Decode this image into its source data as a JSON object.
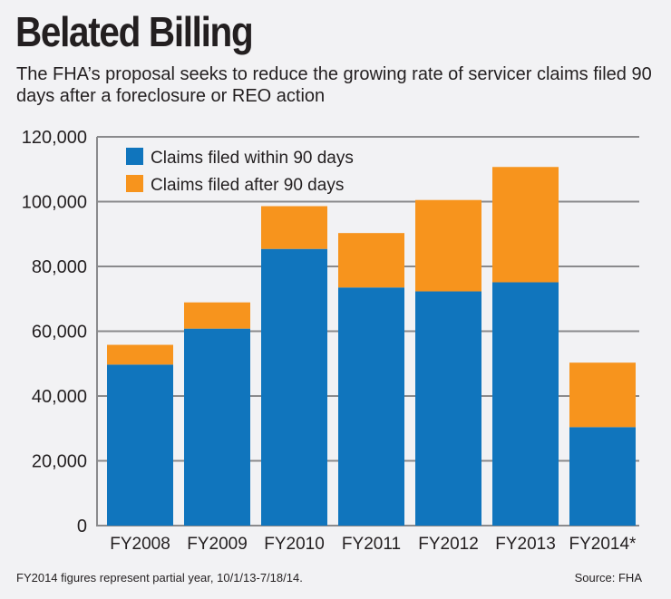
{
  "header": {
    "title": "Belated Billing",
    "subtitle": "The FHA’s proposal seeks to reduce the growing rate of servicer claims filed 90 days after a foreclosure or REO action"
  },
  "footer": {
    "note": "FY2014 figures represent partial year, 10/1/13-7/18/14.",
    "source": "Source: FHA"
  },
  "chart_data": {
    "type": "bar",
    "stacked": true,
    "title": "Belated Billing",
    "xlabel": "",
    "ylabel": "",
    "ylim": [
      0,
      120000
    ],
    "yticks": [
      0,
      20000,
      40000,
      60000,
      80000,
      100000,
      120000
    ],
    "ytick_labels": [
      "0",
      "20,000",
      "40,000",
      "60,000",
      "80,000",
      "100,000",
      "120,000"
    ],
    "grid": true,
    "legend_position": "top-left",
    "categories": [
      "FY2008",
      "FY2009",
      "FY2010",
      "FY2011",
      "FY2012",
      "FY2013",
      "FY2014*"
    ],
    "series": [
      {
        "name": "Claims filed within 90 days",
        "color": "#1075bd",
        "values": [
          49700,
          60800,
          85400,
          73500,
          72300,
          75100,
          30400
        ]
      },
      {
        "name": "Claims filed after 90 days",
        "color": "#f7941d",
        "values": [
          6100,
          8100,
          13200,
          16800,
          28200,
          35600,
          19900
        ]
      }
    ]
  }
}
